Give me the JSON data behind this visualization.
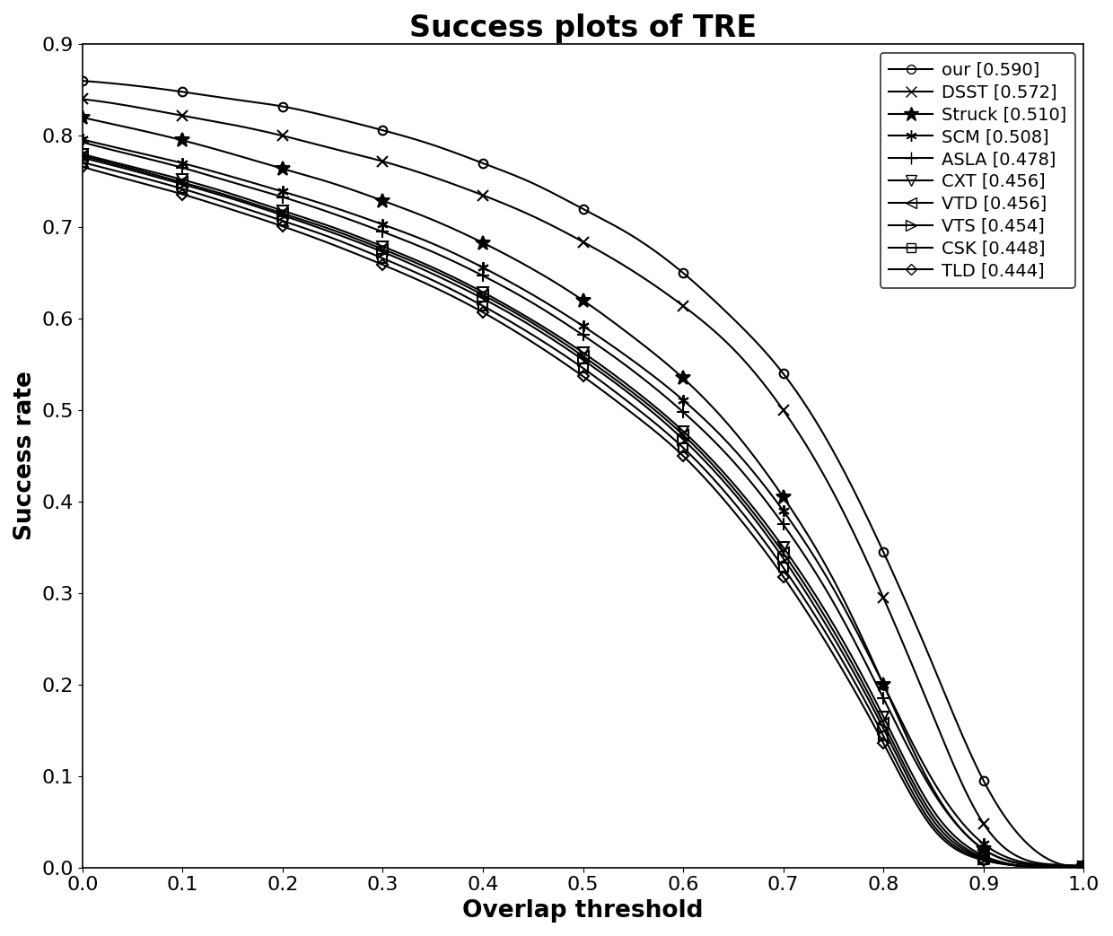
{
  "title": "Success plots of TRE",
  "xlabel": "Overlap threshold",
  "ylabel": "Success rate",
  "xlim": [
    0,
    1
  ],
  "ylim": [
    0,
    0.9
  ],
  "trackers": [
    {
      "name": "our [0.590]",
      "marker": "o",
      "open": true,
      "ms": 7,
      "x_points": [
        0.0,
        0.05,
        0.1,
        0.15,
        0.2,
        0.25,
        0.3,
        0.35,
        0.4,
        0.45,
        0.5,
        0.55,
        0.6,
        0.65,
        0.7,
        0.75,
        0.8,
        0.85,
        0.9,
        0.95,
        1.0
      ],
      "y_points": [
        0.86,
        0.855,
        0.848,
        0.84,
        0.832,
        0.82,
        0.806,
        0.79,
        0.77,
        0.748,
        0.72,
        0.69,
        0.65,
        0.6,
        0.54,
        0.455,
        0.345,
        0.22,
        0.095,
        0.02,
        0.002
      ]
    },
    {
      "name": "DSST [0.572]",
      "marker": "x",
      "open": false,
      "ms": 8,
      "x_points": [
        0.0,
        0.05,
        0.1,
        0.15,
        0.2,
        0.25,
        0.3,
        0.35,
        0.4,
        0.45,
        0.5,
        0.55,
        0.6,
        0.65,
        0.7,
        0.75,
        0.8,
        0.85,
        0.9,
        0.95,
        1.0
      ],
      "y_points": [
        0.84,
        0.832,
        0.822,
        0.812,
        0.8,
        0.786,
        0.772,
        0.755,
        0.735,
        0.712,
        0.684,
        0.652,
        0.614,
        0.567,
        0.5,
        0.41,
        0.295,
        0.165,
        0.048,
        0.006,
        0.001
      ]
    },
    {
      "name": "Struck [0.510]",
      "marker": "*",
      "open": false,
      "ms": 12,
      "x_points": [
        0.0,
        0.05,
        0.1,
        0.15,
        0.2,
        0.25,
        0.3,
        0.35,
        0.4,
        0.45,
        0.5,
        0.55,
        0.6,
        0.65,
        0.7,
        0.75,
        0.8,
        0.85,
        0.9,
        0.95,
        1.0
      ],
      "y_points": [
        0.82,
        0.808,
        0.795,
        0.78,
        0.764,
        0.748,
        0.729,
        0.708,
        0.683,
        0.654,
        0.62,
        0.58,
        0.535,
        0.478,
        0.405,
        0.315,
        0.2,
        0.085,
        0.02,
        0.003,
        0.001
      ]
    },
    {
      "name": "SCM [0.508]",
      "marker": "asterisk",
      "open": false,
      "ms": 9,
      "x_points": [
        0.0,
        0.05,
        0.1,
        0.15,
        0.2,
        0.25,
        0.3,
        0.35,
        0.4,
        0.45,
        0.5,
        0.55,
        0.6,
        0.65,
        0.7,
        0.75,
        0.8,
        0.85,
        0.9,
        0.95,
        1.0
      ],
      "y_points": [
        0.796,
        0.783,
        0.77,
        0.755,
        0.739,
        0.722,
        0.703,
        0.682,
        0.656,
        0.626,
        0.592,
        0.554,
        0.511,
        0.458,
        0.39,
        0.305,
        0.2,
        0.094,
        0.026,
        0.004,
        0.001
      ]
    },
    {
      "name": "ASLA [0.478]",
      "marker": "+",
      "open": false,
      "ms": 10,
      "x_points": [
        0.0,
        0.05,
        0.1,
        0.15,
        0.2,
        0.25,
        0.3,
        0.35,
        0.4,
        0.45,
        0.5,
        0.55,
        0.6,
        0.65,
        0.7,
        0.75,
        0.8,
        0.85,
        0.9,
        0.95,
        1.0
      ],
      "y_points": [
        0.793,
        0.779,
        0.765,
        0.749,
        0.733,
        0.715,
        0.695,
        0.673,
        0.647,
        0.617,
        0.582,
        0.543,
        0.498,
        0.444,
        0.375,
        0.29,
        0.185,
        0.082,
        0.02,
        0.003,
        0.001
      ]
    },
    {
      "name": "CXT [0.456]",
      "marker": "v",
      "open": true,
      "ms": 8,
      "x_points": [
        0.0,
        0.05,
        0.1,
        0.15,
        0.2,
        0.25,
        0.3,
        0.35,
        0.4,
        0.45,
        0.5,
        0.55,
        0.6,
        0.65,
        0.7,
        0.75,
        0.8,
        0.85,
        0.9,
        0.95,
        1.0
      ],
      "y_points": [
        0.78,
        0.766,
        0.752,
        0.736,
        0.718,
        0.7,
        0.679,
        0.656,
        0.629,
        0.598,
        0.563,
        0.523,
        0.477,
        0.42,
        0.35,
        0.266,
        0.165,
        0.062,
        0.013,
        0.001,
        0.001
      ]
    },
    {
      "name": "VTD [0.456]",
      "marker": "<",
      "open": true,
      "ms": 8,
      "x_points": [
        0.0,
        0.05,
        0.1,
        0.15,
        0.2,
        0.25,
        0.3,
        0.35,
        0.4,
        0.45,
        0.5,
        0.55,
        0.6,
        0.65,
        0.7,
        0.75,
        0.8,
        0.85,
        0.9,
        0.95,
        1.0
      ],
      "y_points": [
        0.778,
        0.764,
        0.749,
        0.733,
        0.715,
        0.697,
        0.676,
        0.653,
        0.626,
        0.595,
        0.559,
        0.519,
        0.473,
        0.415,
        0.344,
        0.259,
        0.158,
        0.056,
        0.011,
        0.001,
        0.001
      ]
    },
    {
      "name": "VTS [0.454]",
      "marker": ">",
      "open": true,
      "ms": 8,
      "x_points": [
        0.0,
        0.05,
        0.1,
        0.15,
        0.2,
        0.25,
        0.3,
        0.35,
        0.4,
        0.45,
        0.5,
        0.55,
        0.6,
        0.65,
        0.7,
        0.75,
        0.8,
        0.85,
        0.9,
        0.95,
        1.0
      ],
      "y_points": [
        0.776,
        0.762,
        0.747,
        0.731,
        0.713,
        0.694,
        0.673,
        0.649,
        0.622,
        0.591,
        0.555,
        0.515,
        0.468,
        0.41,
        0.338,
        0.252,
        0.152,
        0.051,
        0.01,
        0.001,
        0.001
      ]
    },
    {
      "name": "CSK [0.448]",
      "marker": "s",
      "open": true,
      "ms": 7,
      "x_points": [
        0.0,
        0.05,
        0.1,
        0.15,
        0.2,
        0.25,
        0.3,
        0.35,
        0.4,
        0.45,
        0.5,
        0.55,
        0.6,
        0.65,
        0.7,
        0.75,
        0.8,
        0.85,
        0.9,
        0.95,
        1.0
      ],
      "y_points": [
        0.771,
        0.757,
        0.742,
        0.725,
        0.707,
        0.688,
        0.666,
        0.642,
        0.614,
        0.582,
        0.546,
        0.505,
        0.459,
        0.4,
        0.328,
        0.243,
        0.144,
        0.046,
        0.009,
        0.001,
        0.001
      ]
    },
    {
      "name": "TLD [0.444]",
      "marker": "D",
      "open": true,
      "ms": 6,
      "x_points": [
        0.0,
        0.05,
        0.1,
        0.15,
        0.2,
        0.25,
        0.3,
        0.35,
        0.4,
        0.45,
        0.5,
        0.55,
        0.6,
        0.65,
        0.7,
        0.75,
        0.8,
        0.85,
        0.9,
        0.95,
        1.0
      ],
      "y_points": [
        0.766,
        0.751,
        0.736,
        0.719,
        0.701,
        0.681,
        0.659,
        0.635,
        0.607,
        0.574,
        0.537,
        0.496,
        0.45,
        0.39,
        0.318,
        0.233,
        0.136,
        0.042,
        0.008,
        0.001,
        0.001
      ]
    }
  ],
  "line_color": "#000000",
  "markevery": 2,
  "linewidth": 1.5,
  "title_fontsize": 24,
  "label_fontsize": 19,
  "tick_fontsize": 16,
  "legend_fontsize": 14
}
